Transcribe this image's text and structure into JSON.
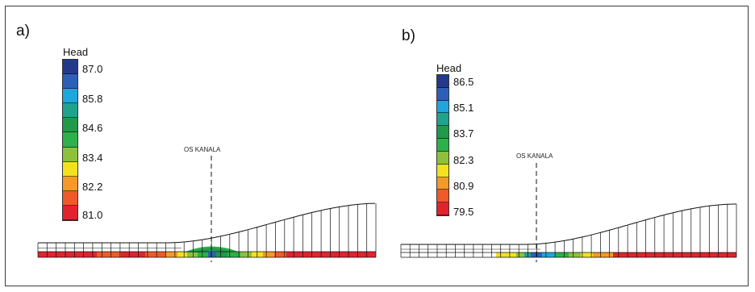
{
  "panels": [
    {
      "label": "a)",
      "legend": {
        "title": "Head",
        "tick_labels": [
          "87.0",
          "85.8",
          "84.6",
          "83.4",
          "82.2",
          "81.0"
        ],
        "colors": [
          "#233a8c",
          "#2e5fb8",
          "#1fa6dd",
          "#20a38c",
          "#1f9a48",
          "#2eb04a",
          "#8dc13c",
          "#f2e21e",
          "#f39a28",
          "#ef5a2a",
          "#e2232e"
        ]
      },
      "axis_label": "OS KANALA"
    },
    {
      "label": "b)",
      "legend": {
        "title": "Head",
        "tick_labels": [
          "86.5",
          "85.1",
          "83.7",
          "82.3",
          "80.9",
          "79.5"
        ],
        "colors": [
          "#233a8c",
          "#2e5fb8",
          "#1fa6dd",
          "#20a38c",
          "#1f9a48",
          "#2eb04a",
          "#8dc13c",
          "#f2e21e",
          "#f39a28",
          "#ef5a2a",
          "#e2232e"
        ]
      },
      "axis_label": "OS KANALA"
    }
  ]
}
